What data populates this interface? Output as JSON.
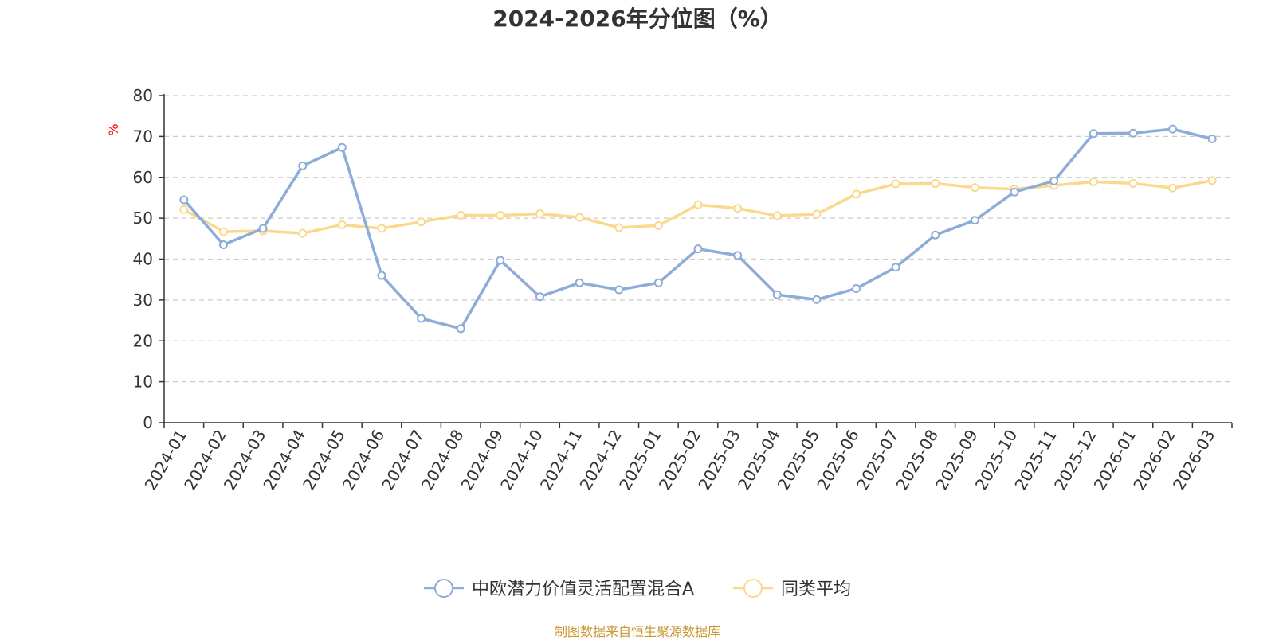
{
  "chart_data": {
    "type": "line",
    "title": "2024-2026年分位图（%）",
    "ylabel": "%",
    "ylim": [
      0,
      80
    ],
    "yticks": [
      "0",
      "10",
      "20",
      "30",
      "40",
      "50",
      "60",
      "70",
      "80"
    ],
    "grid": true,
    "legend_position": "bottom",
    "categories": [
      "2024-01",
      "2024-02",
      "2024-03",
      "2024-04",
      "2024-05",
      "2024-06",
      "2024-07",
      "2024-08",
      "2024-09",
      "2024-10",
      "2024-11",
      "2024-12",
      "2025-01",
      "2025-02",
      "2025-03",
      "2025-04",
      "2025-05",
      "2025-06",
      "2025-07",
      "2025-08",
      "2025-09",
      "2025-10",
      "2025-11",
      "2025-12",
      "2026-01",
      "2026-02",
      "2026-03"
    ],
    "series": [
      {
        "name": "中欧潜力价值灵活配置混合A",
        "color": "#8eacd8",
        "values": [
          54.5,
          43.5,
          47.5,
          62.8,
          67.3,
          36.0,
          25.5,
          23.0,
          39.7,
          30.8,
          34.2,
          32.5,
          34.2,
          42.5,
          40.9,
          31.3,
          30.1,
          32.8,
          38.0,
          45.9,
          49.5,
          56.4,
          59.1,
          70.7,
          70.8,
          71.8,
          69.4
        ]
      },
      {
        "name": "同类平均",
        "color": "#fad98c",
        "values": [
          52.1,
          46.7,
          46.9,
          46.3,
          48.4,
          47.5,
          49.1,
          50.7,
          50.7,
          51.1,
          50.2,
          47.7,
          48.2,
          53.3,
          52.4,
          50.6,
          51.0,
          55.9,
          58.4,
          58.5,
          57.5,
          57.1,
          58.0,
          58.9,
          58.5,
          57.4,
          59.2
        ]
      }
    ]
  },
  "source": "制图数据来自恒生聚源数据库"
}
